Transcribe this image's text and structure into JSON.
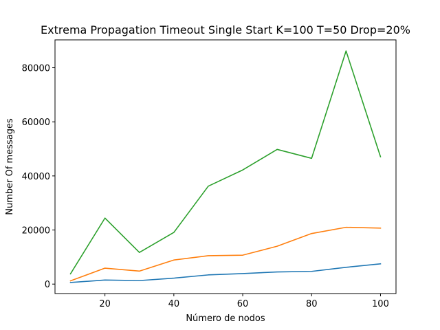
{
  "chart_data": {
    "type": "line",
    "title": "Extrema Propagation Timeout Single Start K=100 T=50 Drop=20%",
    "xlabel": "Número de nodos",
    "ylabel": "Number Of messages",
    "x": [
      10,
      20,
      30,
      40,
      50,
      60,
      70,
      80,
      90,
      100
    ],
    "xlim": [
      5.5,
      104.5
    ],
    "ylim": [
      -3500,
      90300
    ],
    "xticks": [
      20,
      40,
      60,
      80,
      100
    ],
    "yticks": [
      0,
      20000,
      40000,
      60000,
      80000
    ],
    "grid": false,
    "series": [
      {
        "color": "#1f77b4",
        "values": [
          600,
          1500,
          1300,
          2200,
          3400,
          3900,
          4500,
          4700,
          6200,
          7500
        ]
      },
      {
        "color": "#ff7f0e",
        "values": [
          1200,
          5900,
          4800,
          8900,
          10500,
          10700,
          14000,
          18700,
          21000,
          20700
        ]
      },
      {
        "color": "#2ca02c",
        "values": [
          3800,
          24400,
          11700,
          19100,
          36200,
          42200,
          49800,
          46500,
          86200,
          47100
        ]
      }
    ]
  }
}
